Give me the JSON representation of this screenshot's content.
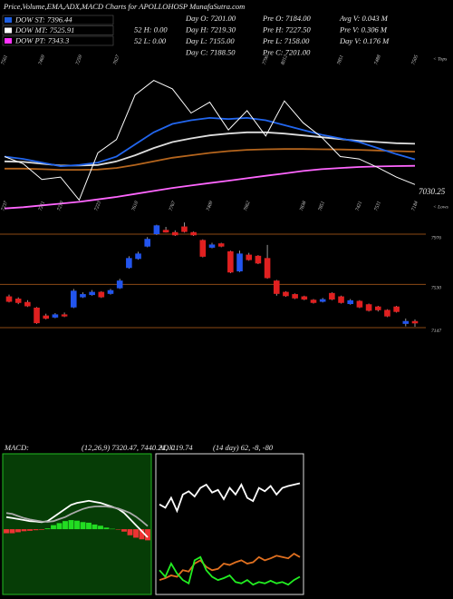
{
  "header": {
    "title": "Price,Volume,EMA,ADX,MACD Charts for APOLLOHOSP MunafaSutra.com",
    "dow": [
      {
        "label": "DOW ST: 7396.44",
        "color": "#1f5fe0"
      },
      {
        "label": "DOW MT: 7525.91",
        "color": "#ffffff"
      },
      {
        "label": "DOW PT: 7343.3",
        "color": "#ff33ff"
      }
    ],
    "info": [
      [
        "52 H: 0.00",
        "52 L: 0.00"
      ],
      [
        "Day O: 7201.00",
        "Day H: 7219.30",
        "Day L: 7155.00",
        "Day C: 7188.50"
      ],
      [
        "Pre O: 7184.00",
        "Pre H: 7227.50",
        "Pre L: 7158.00",
        "Pre C: 7201.00"
      ],
      [
        "Avg V: 0.043 M",
        "Pre V: 0.306 M",
        "Day V: 0.176 M"
      ]
    ]
  },
  "chart_data": [
    {
      "type": "line",
      "ylim": [
        6950,
        8250
      ],
      "series": [
        {
          "color": "#ff66ff",
          "values": [
            6990,
            7000,
            7015,
            7030,
            7045,
            7065,
            7085,
            7110,
            7135,
            7160,
            7180,
            7200,
            7220,
            7240,
            7260,
            7280,
            7300,
            7315,
            7325,
            7333,
            7338,
            7341,
            7343
          ]
        },
        {
          "color": "#b5651d",
          "values": [
            7320,
            7320,
            7315,
            7310,
            7310,
            7312,
            7325,
            7350,
            7380,
            7410,
            7430,
            7450,
            7465,
            7475,
            7480,
            7482,
            7482,
            7480,
            7478,
            7475,
            7470,
            7465,
            7460
          ]
        },
        {
          "color": "#dddddd",
          "values": [
            7380,
            7375,
            7360,
            7345,
            7345,
            7350,
            7380,
            7430,
            7490,
            7540,
            7570,
            7595,
            7610,
            7620,
            7620,
            7610,
            7595,
            7580,
            7565,
            7550,
            7540,
            7530,
            7525.91
          ]
        },
        {
          "color": "#2266ee",
          "values": [
            7420,
            7400,
            7370,
            7340,
            7350,
            7370,
            7420,
            7520,
            7620,
            7690,
            7720,
            7740,
            7730,
            7740,
            7720,
            7680,
            7640,
            7600,
            7570,
            7540,
            7490,
            7440,
            7396.44
          ]
        },
        {
          "color": "#ffffff",
          "values": [
            7420,
            7360,
            7230,
            7250,
            7060,
            7450,
            7560,
            7930,
            8050,
            7980,
            7780,
            7870,
            7640,
            7800,
            7590,
            7880,
            7700,
            7580,
            7420,
            7400,
            7330,
            7250,
            7188.5
          ]
        }
      ],
      "annotations": [
        {
          "x": 0,
          "label": "7561",
          "position": "top"
        },
        {
          "x": 2,
          "label": "7469",
          "position": "top"
        },
        {
          "x": 4,
          "label": "7259",
          "position": "top"
        },
        {
          "x": 6,
          "label": "7627",
          "position": "top"
        },
        {
          "x": 14,
          "label": "7790",
          "position": "top"
        },
        {
          "x": 15,
          "label": "8012",
          "position": "top"
        },
        {
          "x": 18,
          "label": "7851",
          "position": "top"
        },
        {
          "x": 20,
          "label": "7488",
          "position": "top"
        },
        {
          "x": 22,
          "label": "7505",
          "position": "top"
        },
        {
          "x": 0,
          "label": "7237",
          "position": "bottom"
        },
        {
          "x": 2,
          "label": "7211",
          "position": "bottom"
        },
        {
          "x": 3,
          "label": "7210",
          "position": "bottom"
        },
        {
          "x": 5,
          "label": "7223",
          "position": "bottom"
        },
        {
          "x": 7,
          "label": "7610",
          "position": "bottom"
        },
        {
          "x": 9,
          "label": "7767",
          "position": "bottom"
        },
        {
          "x": 11,
          "label": "7409",
          "position": "bottom"
        },
        {
          "x": 13,
          "label": "7662",
          "position": "bottom"
        },
        {
          "x": 16,
          "label": "7838",
          "position": "bottom"
        },
        {
          "x": 17,
          "label": "7851",
          "position": "bottom"
        },
        {
          "x": 19,
          "label": "7421",
          "position": "bottom"
        },
        {
          "x": 20,
          "label": "7531",
          "position": "bottom"
        },
        {
          "x": 22,
          "label": "7184",
          "position": "bottom"
        }
      ],
      "end_label": "7030.25",
      "markers": [
        "< Tops",
        "< Lows"
      ]
    },
    {
      "type": "candlestick",
      "ylim": [
        7058,
        8121
      ],
      "yticks": [
        7147,
        7530,
        7976
      ],
      "grid_color": "#8b4a14",
      "up_color": "#2255ee",
      "down_color": "#e02020",
      "open": [
        7420,
        7400,
        7370,
        7320,
        7250,
        7240,
        7260,
        7330,
        7420,
        7440,
        7460,
        7450,
        7500,
        7680,
        7760,
        7870,
        7980,
        8010,
        7990,
        8040,
        7990,
        7920,
        7860,
        7890,
        7820,
        7650,
        7790,
        7780,
        7760,
        7560,
        7460,
        7440,
        7420,
        7390,
        7380,
        7450,
        7420,
        7360,
        7380,
        7350,
        7330,
        7300,
        7330,
        7184,
        7201
      ],
      "high": [
        7440,
        7415,
        7390,
        7330,
        7270,
        7275,
        7280,
        7490,
        7460,
        7480,
        7470,
        7490,
        7580,
        7780,
        7820,
        7950,
        8060,
        8040,
        8010,
        8080,
        8000,
        7930,
        7900,
        7900,
        7830,
        7830,
        7810,
        7790,
        7880,
        7570,
        7470,
        7450,
        7430,
        7400,
        7410,
        7460,
        7430,
        7400,
        7390,
        7360,
        7340,
        7310,
        7340,
        7227.5,
        7219.3
      ],
      "low": [
        7370,
        7355,
        7330,
        7180,
        7220,
        7230,
        7240,
        7320,
        7410,
        7430,
        7410,
        7440,
        7490,
        7670,
        7750,
        7860,
        7970,
        7990,
        7960,
        7990,
        7960,
        7770,
        7850,
        7860,
        7630,
        7640,
        7740,
        7710,
        7580,
        7430,
        7420,
        7400,
        7390,
        7360,
        7370,
        7390,
        7360,
        7350,
        7320,
        7290,
        7290,
        7240,
        7280,
        7158,
        7155
      ],
      "close": [
        7380,
        7370,
        7340,
        7190,
        7230,
        7260,
        7250,
        7470,
        7440,
        7460,
        7420,
        7475,
        7560,
        7760,
        7800,
        7930,
        8050,
        7995,
        7970,
        8000,
        7970,
        7780,
        7880,
        7870,
        7640,
        7800,
        7750,
        7720,
        7590,
        7450,
        7430,
        7410,
        7400,
        7370,
        7395,
        7400,
        7370,
        7385,
        7330,
        7300,
        7305,
        7250,
        7290,
        7201,
        7188.5
      ]
    },
    {
      "type": "combo",
      "title": "MACD:",
      "subtitle": "(12,26,9) 7320.47, 7440.21, -119.74",
      "ylim": [
        -300,
        350
      ],
      "background": "#063d06",
      "border": "#22bb22",
      "histogram": [
        -20,
        -20,
        -15,
        -10,
        -8,
        -5,
        -3,
        4,
        20,
        30,
        40,
        45,
        42,
        35,
        32,
        23,
        17,
        8,
        2,
        -2,
        -12,
        -30,
        -42,
        -50,
        -55
      ],
      "pos_color": "#22dd22",
      "neg_color": "#ee3333",
      "series": [
        {
          "color": "#ffffff",
          "values": [
            60,
            55,
            50,
            45,
            40,
            38,
            35,
            40,
            60,
            80,
            100,
            120,
            130,
            135,
            140,
            135,
            130,
            120,
            110,
            100,
            80,
            50,
            20,
            -10,
            -40
          ]
        },
        {
          "color": "#aaaaaa",
          "values": [
            80,
            75,
            65,
            55,
            48,
            43,
            38,
            36,
            40,
            50,
            60,
            75,
            88,
            100,
            108,
            112,
            113,
            112,
            108,
            102,
            92,
            80,
            62,
            40,
            15
          ]
        }
      ]
    },
    {
      "type": "line",
      "title": "ADX",
      "subtitle": "(14 day) 62, -8, -80",
      "ylim": [
        -100,
        100
      ],
      "background": "#000000",
      "border": "#dddddd",
      "series": [
        {
          "color": "#ffffff",
          "values": [
            30,
            25,
            40,
            20,
            45,
            50,
            42,
            55,
            60,
            48,
            52,
            38,
            55,
            45,
            60,
            40,
            35,
            55,
            50,
            58,
            45,
            55,
            58,
            60,
            62
          ]
        },
        {
          "color": "#e07020",
          "values": [
            -85,
            -82,
            -78,
            -80,
            -70,
            -72,
            -60,
            -55,
            -65,
            -70,
            -68,
            -60,
            -62,
            -58,
            -55,
            -60,
            -58,
            -50,
            -55,
            -52,
            -48,
            -50,
            -52,
            -45,
            -50
          ]
        },
        {
          "color": "#22ee22",
          "values": [
            -70,
            -80,
            -60,
            -75,
            -85,
            -90,
            -55,
            -50,
            -70,
            -80,
            -85,
            -82,
            -78,
            -88,
            -90,
            -85,
            -92,
            -88,
            -90,
            -86,
            -90,
            -88,
            -92,
            -85,
            -80
          ]
        }
      ]
    }
  ]
}
